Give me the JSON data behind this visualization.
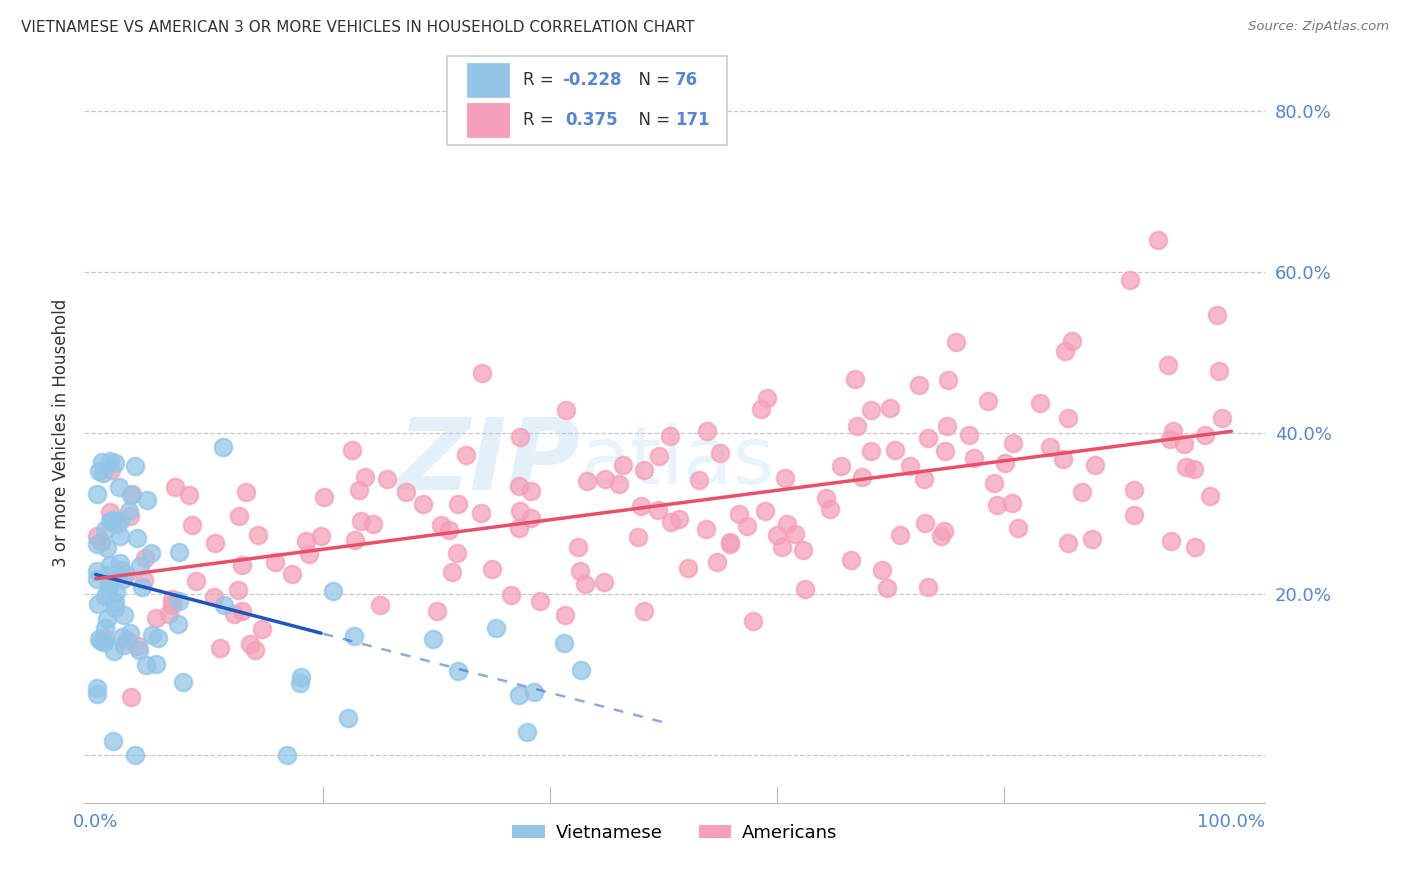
{
  "title": "VIETNAMESE VS AMERICAN 3 OR MORE VEHICLES IN HOUSEHOLD CORRELATION CHART",
  "source": "Source: ZipAtlas.com",
  "ylabel": "3 or more Vehicles in Household",
  "legend_r_viet": "-0.228",
  "legend_n_viet": "76",
  "legend_r_amer": "0.375",
  "legend_n_amer": "171",
  "watermark_zip": "ZIP",
  "watermark_atlas": "atlas",
  "viet_color": "#92C5E8",
  "amer_color": "#F5A0B8",
  "viet_line_color": "#2255BB",
  "amer_line_color": "#E8506A",
  "grid_color": "#C8C8C8",
  "background_color": "#FFFFFF",
  "tick_color": "#5585D5",
  "title_color": "#333333",
  "label_color": "#333333",
  "source_color": "#777777",
  "xlim_min": -1,
  "xlim_max": 103,
  "ylim_min": -6,
  "ylim_max": 86,
  "xtick_positions": [
    0,
    20,
    40,
    60,
    80,
    100
  ],
  "xticklabels": [
    "0.0%",
    "",
    "",
    "",
    "",
    "100.0%"
  ],
  "ytick_positions": [
    0,
    20,
    40,
    60,
    80
  ],
  "yticklabels": [
    "",
    "20.0%",
    "40.0%",
    "60.0%",
    "80.0%"
  ]
}
